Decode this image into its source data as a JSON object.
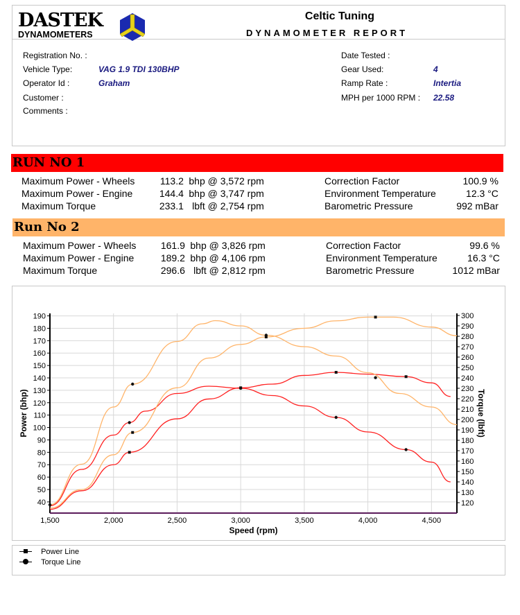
{
  "logo": {
    "brand": "DASTEK",
    "sub": "DYNAMOMETERS"
  },
  "header": {
    "company": "Celtic Tuning",
    "title": "DYNAMOMETER REPORT"
  },
  "vehicle": {
    "left": [
      {
        "label": "Registration No. :",
        "value": ""
      },
      {
        "label": "Vehicle Type:",
        "value": "VAG 1.9 TDI 130BHP"
      },
      {
        "label": "Operator Id :",
        "value": "Graham"
      },
      {
        "label": "Customer :",
        "value": ""
      },
      {
        "label": "Comments :",
        "value": ""
      }
    ],
    "right": [
      {
        "label": "Date Tested :",
        "value": ""
      },
      {
        "label": "Gear Used:",
        "value": "4"
      },
      {
        "label": "Ramp Rate :",
        "value": "Intertia"
      },
      {
        "label": "MPH per 1000 RPM :",
        "value": "22.58"
      }
    ]
  },
  "runs": [
    {
      "title": "RUN NO 1",
      "color": "#ff0000",
      "rows": [
        {
          "label": "Maximum Power - Wheels",
          "value": "113.2",
          "unit": "bhp @ 3,572 rpm"
        },
        {
          "label": "Maximum Power - Engine",
          "value": "144.4",
          "unit": "bhp @ 3,747 rpm"
        },
        {
          "label": "Maximum Torque",
          "value": "233.1",
          "unit": "lbft @ 2,754 rpm"
        }
      ],
      "env": [
        {
          "label": "Correction Factor",
          "value": "100.9 %"
        },
        {
          "label": "Environment Temperature",
          "value": "12.3 °C"
        },
        {
          "label": "Barometric Pressure",
          "value": "992 mBar"
        }
      ]
    },
    {
      "title": "Run No 2",
      "color": "#ffb469",
      "rows": [
        {
          "label": "Maximum Power - Wheels",
          "value": "161.9",
          "unit": "bhp @ 3,826 rpm"
        },
        {
          "label": "Maximum Power - Engine",
          "value": "189.2",
          "unit": "bhp @ 4,106 rpm"
        },
        {
          "label": "Maximum Torque",
          "value": "296.6",
          "unit": "lbft @ 2,812 rpm"
        }
      ],
      "env": [
        {
          "label": "Correction Factor",
          "value": "99.6 %"
        },
        {
          "label": "Environment Temperature",
          "value": "16.3 °C"
        },
        {
          "label": "Barometric Pressure",
          "value": "1012 mBar"
        }
      ]
    }
  ],
  "chart_data": {
    "type": "line",
    "xlabel": "Speed (rpm)",
    "ylabel": "Power (bhp)",
    "y2label": "Torque (lbft)",
    "xlim": [
      1500,
      4700
    ],
    "ylim": [
      31,
      192
    ],
    "y2lim": [
      110,
      302
    ],
    "xticks": [
      1500,
      2000,
      2500,
      3000,
      3500,
      4000,
      4500
    ],
    "xtick_labels": [
      "1,500",
      "2,000",
      "2,500",
      "3,000",
      "3,500",
      "4,000",
      "4,500"
    ],
    "yticks": [
      40,
      50,
      60,
      70,
      80,
      90,
      100,
      110,
      120,
      130,
      140,
      150,
      160,
      170,
      180,
      190
    ],
    "y2ticks": [
      120,
      130,
      140,
      150,
      160,
      170,
      180,
      190,
      200,
      210,
      220,
      230,
      240,
      250,
      260,
      270,
      280,
      290,
      300
    ],
    "grid": true,
    "series": [
      {
        "run": 1,
        "kind": "power",
        "axis": "left",
        "color": "#ff2020",
        "x": [
          1500,
          1750,
          2000,
          2125,
          2500,
          2750,
          3000,
          3250,
          3500,
          3750,
          4000,
          4300,
          4500,
          4650
        ],
        "y": [
          34,
          49,
          70,
          80,
          107,
          123,
          132,
          135,
          142,
          144.5,
          143,
          141,
          136,
          125
        ],
        "markers": [
          2125,
          3000,
          3750,
          4300
        ]
      },
      {
        "run": 1,
        "kind": "torque",
        "axis": "right",
        "color": "#ff2020",
        "x": [
          1500,
          1750,
          2000,
          2125,
          2250,
          2500,
          2750,
          3000,
          3250,
          3500,
          3750,
          4000,
          4300,
          4500,
          4650
        ],
        "y": [
          117,
          152,
          185,
          197,
          208,
          225,
          232,
          230,
          223,
          213,
          202,
          188,
          171,
          159,
          140
        ],
        "markers": [
          2125,
          3000,
          3750,
          4300
        ]
      },
      {
        "run": 2,
        "kind": "power",
        "axis": "left",
        "color": "#ffb469",
        "x": [
          1500,
          1750,
          2000,
          2150,
          2500,
          2750,
          3000,
          3200,
          3500,
          3750,
          4000,
          4200,
          4500,
          4700
        ],
        "y": [
          35,
          50,
          78,
          96,
          132,
          156,
          167,
          173,
          180,
          186,
          189,
          189,
          181,
          174
        ],
        "markers": [
          2150,
          3200,
          4060
        ]
      },
      {
        "run": 2,
        "kind": "torque",
        "axis": "right",
        "color": "#ffb469",
        "x": [
          1500,
          1750,
          2000,
          2150,
          2500,
          2700,
          2800,
          3000,
          3200,
          3500,
          3750,
          4000,
          4250,
          4500,
          4700
        ],
        "y": [
          118,
          157,
          212,
          234,
          275,
          292,
          295,
          290,
          281,
          270,
          261,
          245,
          225,
          212,
          195
        ],
        "markers": [
          1500,
          2150,
          3200,
          4060
        ]
      }
    ],
    "legend": [
      {
        "label": "Power Line",
        "marker": "square"
      },
      {
        "label": "Torque Line",
        "marker": "circle"
      }
    ],
    "legend_position": "bottom"
  }
}
